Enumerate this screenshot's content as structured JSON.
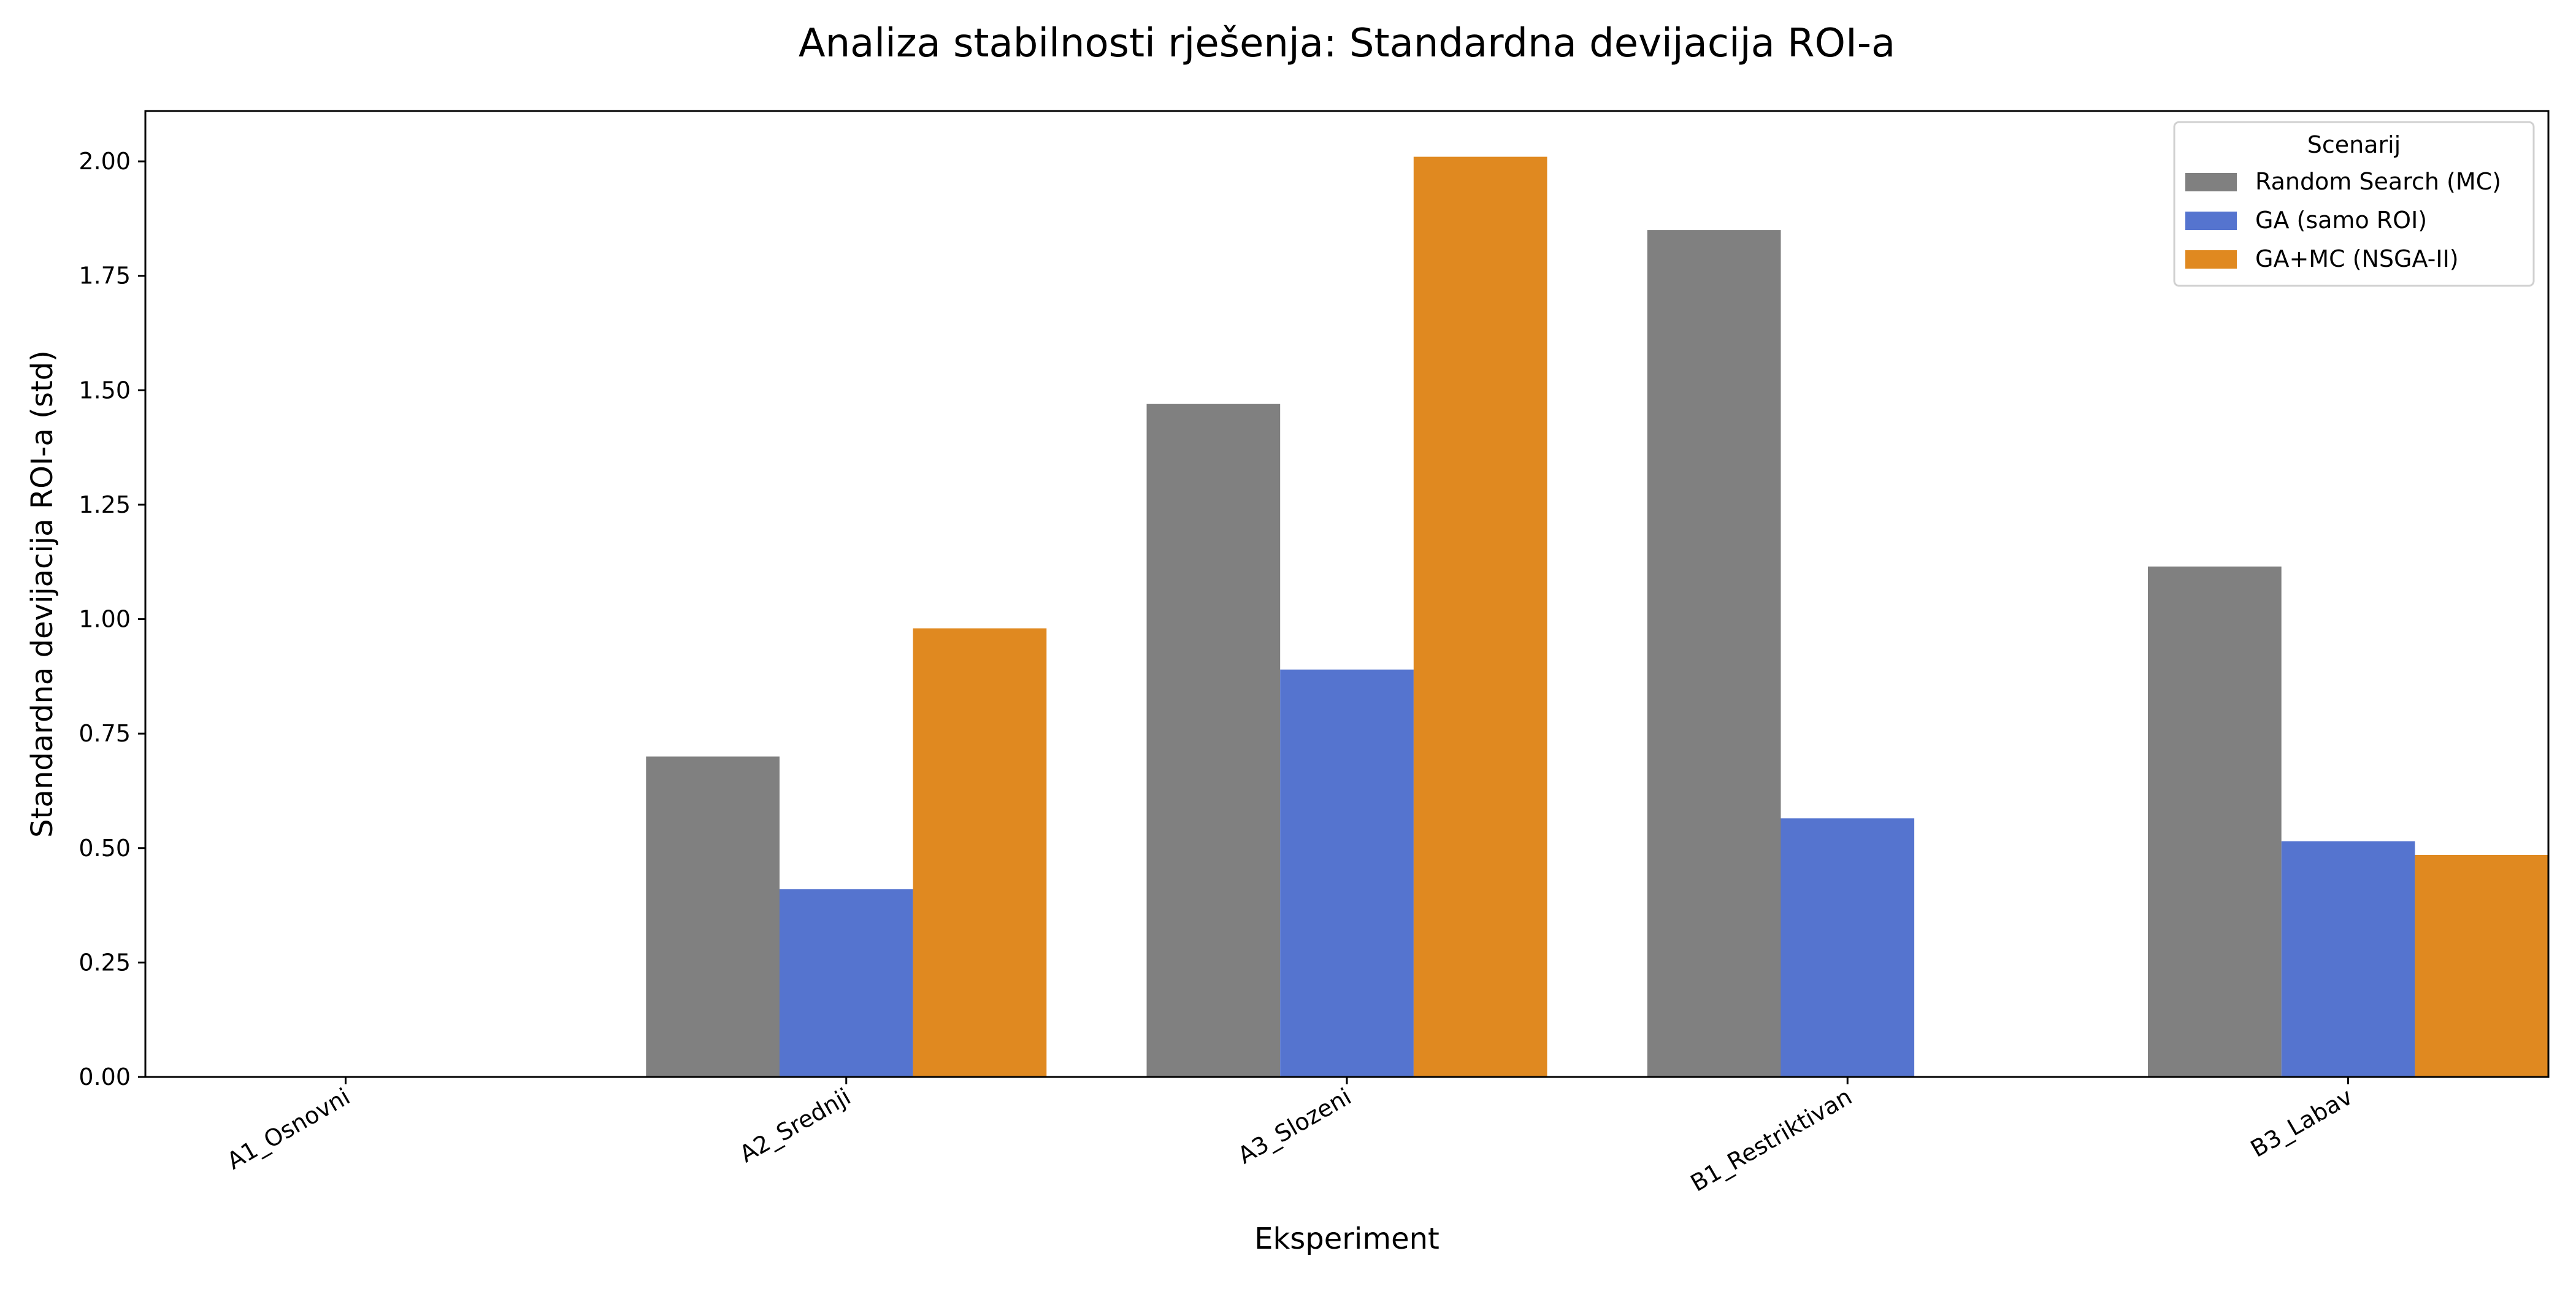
{
  "chart_data": {
    "type": "bar",
    "title": "Analiza stabilnosti rješenja: Standardna devijacija ROI-a",
    "xlabel": "Eksperiment",
    "ylabel": "Standardna devijacija ROI-a (std)",
    "categories": [
      "A1_Osnovni",
      "A2_Srednji",
      "A3_Slozeni",
      "B1_Restriktivan",
      "B3_Labav"
    ],
    "series": [
      {
        "name": "Random Search (MC)",
        "color": "#808080",
        "values": [
          0,
          0.7,
          1.47,
          1.85,
          1.115
        ]
      },
      {
        "name": "GA (samo ROI)",
        "color": "#5574cf",
        "values": [
          0,
          0.41,
          0.89,
          0.565,
          0.515
        ]
      },
      {
        "name": "GA+MC (NSGA-II)",
        "color": "#e08920",
        "values": [
          0,
          0.98,
          2.01,
          0,
          0.485
        ]
      }
    ],
    "ylim": [
      0,
      2.11
    ],
    "yticks": [
      "0.00",
      "0.25",
      "0.50",
      "0.75",
      "1.00",
      "1.25",
      "1.50",
      "1.75",
      "2.00"
    ],
    "legend": {
      "title": "Scenarij",
      "position": "top-right"
    },
    "grid": false
  }
}
